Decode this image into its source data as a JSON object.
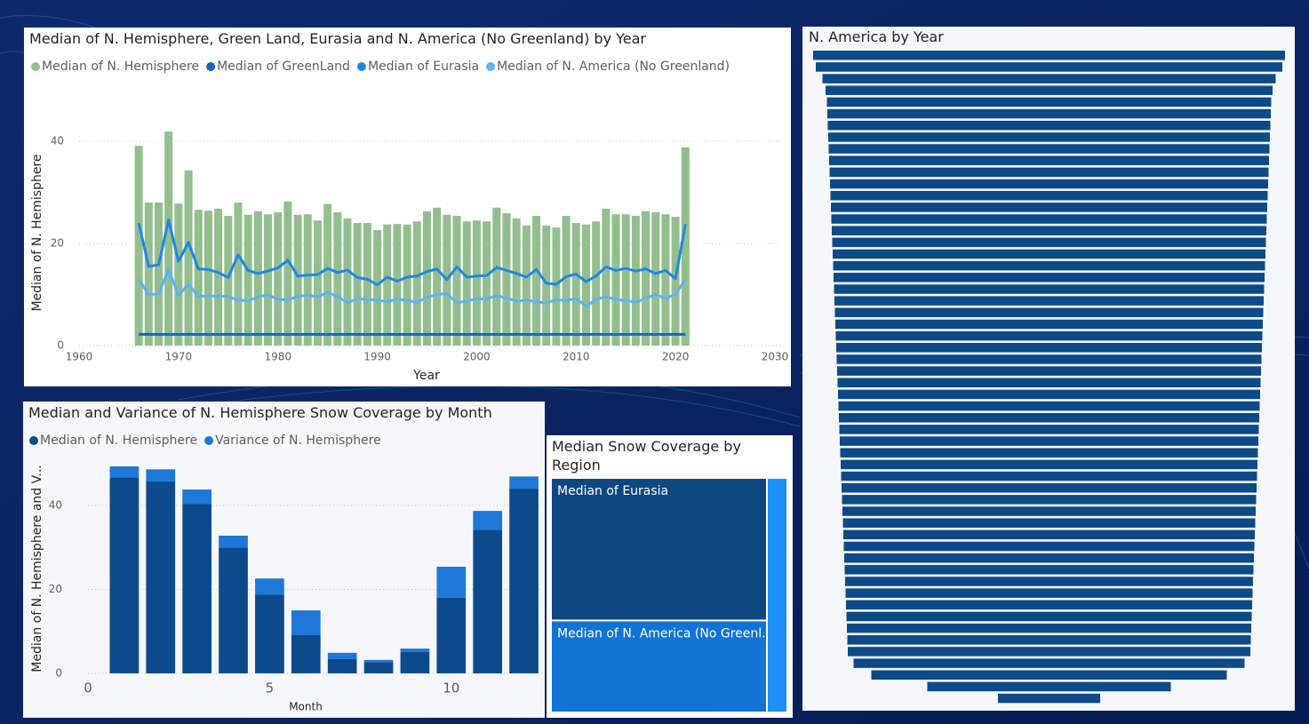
{
  "chart_data": [
    {
      "type": "combo",
      "title": "Median of N. Hemisphere, Green Land, Eurasia and N. America (No Greenland) by Year",
      "x_label": "Year",
      "y_label": "Median of N. Hemisphere",
      "x": [
        1966,
        1967,
        1968,
        1969,
        1970,
        1971,
        1972,
        1973,
        1974,
        1975,
        1976,
        1977,
        1978,
        1979,
        1980,
        1981,
        1982,
        1983,
        1984,
        1985,
        1986,
        1987,
        1988,
        1989,
        1990,
        1991,
        1992,
        1993,
        1994,
        1995,
        1996,
        1997,
        1998,
        1999,
        2000,
        2001,
        2002,
        2003,
        2004,
        2005,
        2006,
        2007,
        2008,
        2009,
        2010,
        2011,
        2012,
        2013,
        2014,
        2015,
        2016,
        2017,
        2018,
        2019,
        2020,
        2021
      ],
      "xlim": [
        1960,
        2030
      ],
      "xticks": [
        1960,
        1970,
        1980,
        1990,
        2000,
        2010,
        2020,
        2030
      ],
      "ylim": [
        0,
        44
      ],
      "yticks": [
        0,
        20,
        40
      ],
      "grid": true,
      "series": [
        {
          "name": "Median of N. Hemisphere",
          "type": "bar",
          "color": "#93bf8e",
          "values": [
            39.1,
            28,
            28,
            41.9,
            27.8,
            34.3,
            26.6,
            26.4,
            26.8,
            25.4,
            28,
            25.6,
            26.3,
            25.7,
            26.1,
            28.2,
            25.6,
            25.7,
            24.5,
            27.7,
            26.1,
            24.9,
            24,
            24,
            22.6,
            23.7,
            23.8,
            23.7,
            24.3,
            26.3,
            27,
            25.6,
            25.4,
            24.3,
            24.5,
            24.3,
            27,
            25.9,
            24.9,
            23.5,
            25.4,
            23.5,
            23.1,
            25.4,
            24,
            23.7,
            24.3,
            26.8,
            25.7,
            25.7,
            25.4,
            26.3,
            26.1,
            25.7,
            25.2,
            38.8
          ]
        },
        {
          "name": "Median of GreenLand",
          "type": "line",
          "color": "#1565c0",
          "values": [
            2.2,
            2.2,
            2.2,
            2.2,
            2.2,
            2.2,
            2.2,
            2.2,
            2.2,
            2.2,
            2.2,
            2.2,
            2.2,
            2.2,
            2.2,
            2.2,
            2.2,
            2.2,
            2.2,
            2.2,
            2.2,
            2.2,
            2.2,
            2.2,
            2.2,
            2.2,
            2.2,
            2.2,
            2.2,
            2.2,
            2.2,
            2.2,
            2.2,
            2.2,
            2.2,
            2.2,
            2.2,
            2.2,
            2.2,
            2.2,
            2.2,
            2.2,
            2.2,
            2.2,
            2.2,
            2.2,
            2.2,
            2.2,
            2.2,
            2.2,
            2.2,
            2.2,
            2.2,
            2.2,
            2.2,
            2.2
          ]
        },
        {
          "name": "Median of Eurasia",
          "type": "line",
          "color": "#1e88e5",
          "values": [
            24,
            15.5,
            15.8,
            24.6,
            16.5,
            20.2,
            15,
            14.9,
            14.3,
            13.3,
            17.8,
            14.7,
            14.1,
            14.6,
            15.2,
            16.7,
            13.6,
            13.8,
            13.9,
            15.1,
            14.3,
            14.8,
            13.3,
            13,
            11.9,
            13.4,
            12.6,
            13.4,
            13.6,
            14.5,
            15,
            12.9,
            15.4,
            13.4,
            13.6,
            13.7,
            15.3,
            14.7,
            14.1,
            13.4,
            14.9,
            12.2,
            12,
            13.5,
            14,
            12.5,
            13.6,
            15.4,
            14.7,
            15.1,
            14.6,
            15,
            14.1,
            14.7,
            13.1,
            23.8
          ]
        },
        {
          "name": "Median of N. America (No Greenland)",
          "type": "line",
          "color": "#5cb3f2",
          "values": [
            13,
            10,
            10.1,
            14.9,
            9.8,
            12,
            9.6,
            9.7,
            9.7,
            9.6,
            8.9,
            8.8,
            9.5,
            10,
            9,
            9,
            9.6,
            9.9,
            9.5,
            10.4,
            9.6,
            8.4,
            9.2,
            9,
            8.9,
            8.6,
            9.1,
            8.8,
            8.5,
            9.4,
            10,
            10.2,
            8.3,
            8.8,
            9.1,
            9.1,
            9.8,
            9.3,
            8.7,
            8.9,
            8.6,
            8.3,
            9,
            8.8,
            9.2,
            7.7,
            9,
            9.6,
            9,
            8.8,
            8.5,
            9.2,
            10,
            9.2,
            10.1,
            12.9
          ]
        }
      ]
    },
    {
      "type": "bar",
      "stacked": true,
      "title": "Median and Variance of N. Hemisphere Snow Coverage by Month",
      "x_label": "Month",
      "y_label": "Median of N. Hemisphere and V...",
      "x": [
        1,
        2,
        3,
        4,
        5,
        6,
        7,
        8,
        9,
        10,
        11,
        12
      ],
      "xlim": [
        0,
        12.5
      ],
      "xticks": [
        0,
        5,
        10
      ],
      "ylim": [
        0,
        51
      ],
      "yticks": [
        0,
        20,
        40
      ],
      "grid": true,
      "series": [
        {
          "name": "Median of N. Hemisphere",
          "color": "#0d4a8c",
          "values": [
            46.7,
            45.7,
            40.4,
            30,
            18.8,
            9.1,
            3.4,
            2.7,
            5.1,
            18,
            34.2,
            44
          ]
        },
        {
          "name": "Variance of N. Hemisphere",
          "color": "#1e78d7",
          "values": [
            2.6,
            2.9,
            3.4,
            2.8,
            3.8,
            5.9,
            1.5,
            0.5,
            0.8,
            7.4,
            4.5,
            2.9
          ]
        }
      ]
    },
    {
      "type": "treemap",
      "title": "Median Snow Coverage by Region",
      "categories": [
        "Median of Eurasia",
        "Median of N. America (No Greenl...",
        null
      ],
      "values": [
        14.1,
        9.1,
        2.2
      ],
      "colors": [
        "#0d4780",
        "#1173d4",
        "#1e90f5"
      ]
    },
    {
      "type": "funnel",
      "title": "N. America by Year",
      "color": "#0d4a87",
      "values": [
        53.1,
        52.5,
        51.0,
        50.3,
        50.0,
        49.9,
        49.8,
        49.7,
        49.6,
        49.5,
        49.4,
        49.3,
        49.2,
        49.1,
        49.0,
        48.9,
        48.8,
        48.7,
        48.6,
        48.5,
        48.4,
        48.3,
        48.2,
        48.1,
        48.0,
        47.9,
        47.8,
        47.7,
        47.6,
        47.5,
        47.4,
        47.3,
        47.2,
        47.1,
        47.0,
        46.9,
        46.8,
        46.7,
        46.6,
        46.5,
        46.4,
        46.3,
        46.2,
        46.1,
        46.0,
        45.9,
        45.8,
        45.7,
        45.6,
        45.5,
        45.4,
        45.3,
        44.0,
        40.0,
        27.4,
        11.5
      ]
    }
  ]
}
